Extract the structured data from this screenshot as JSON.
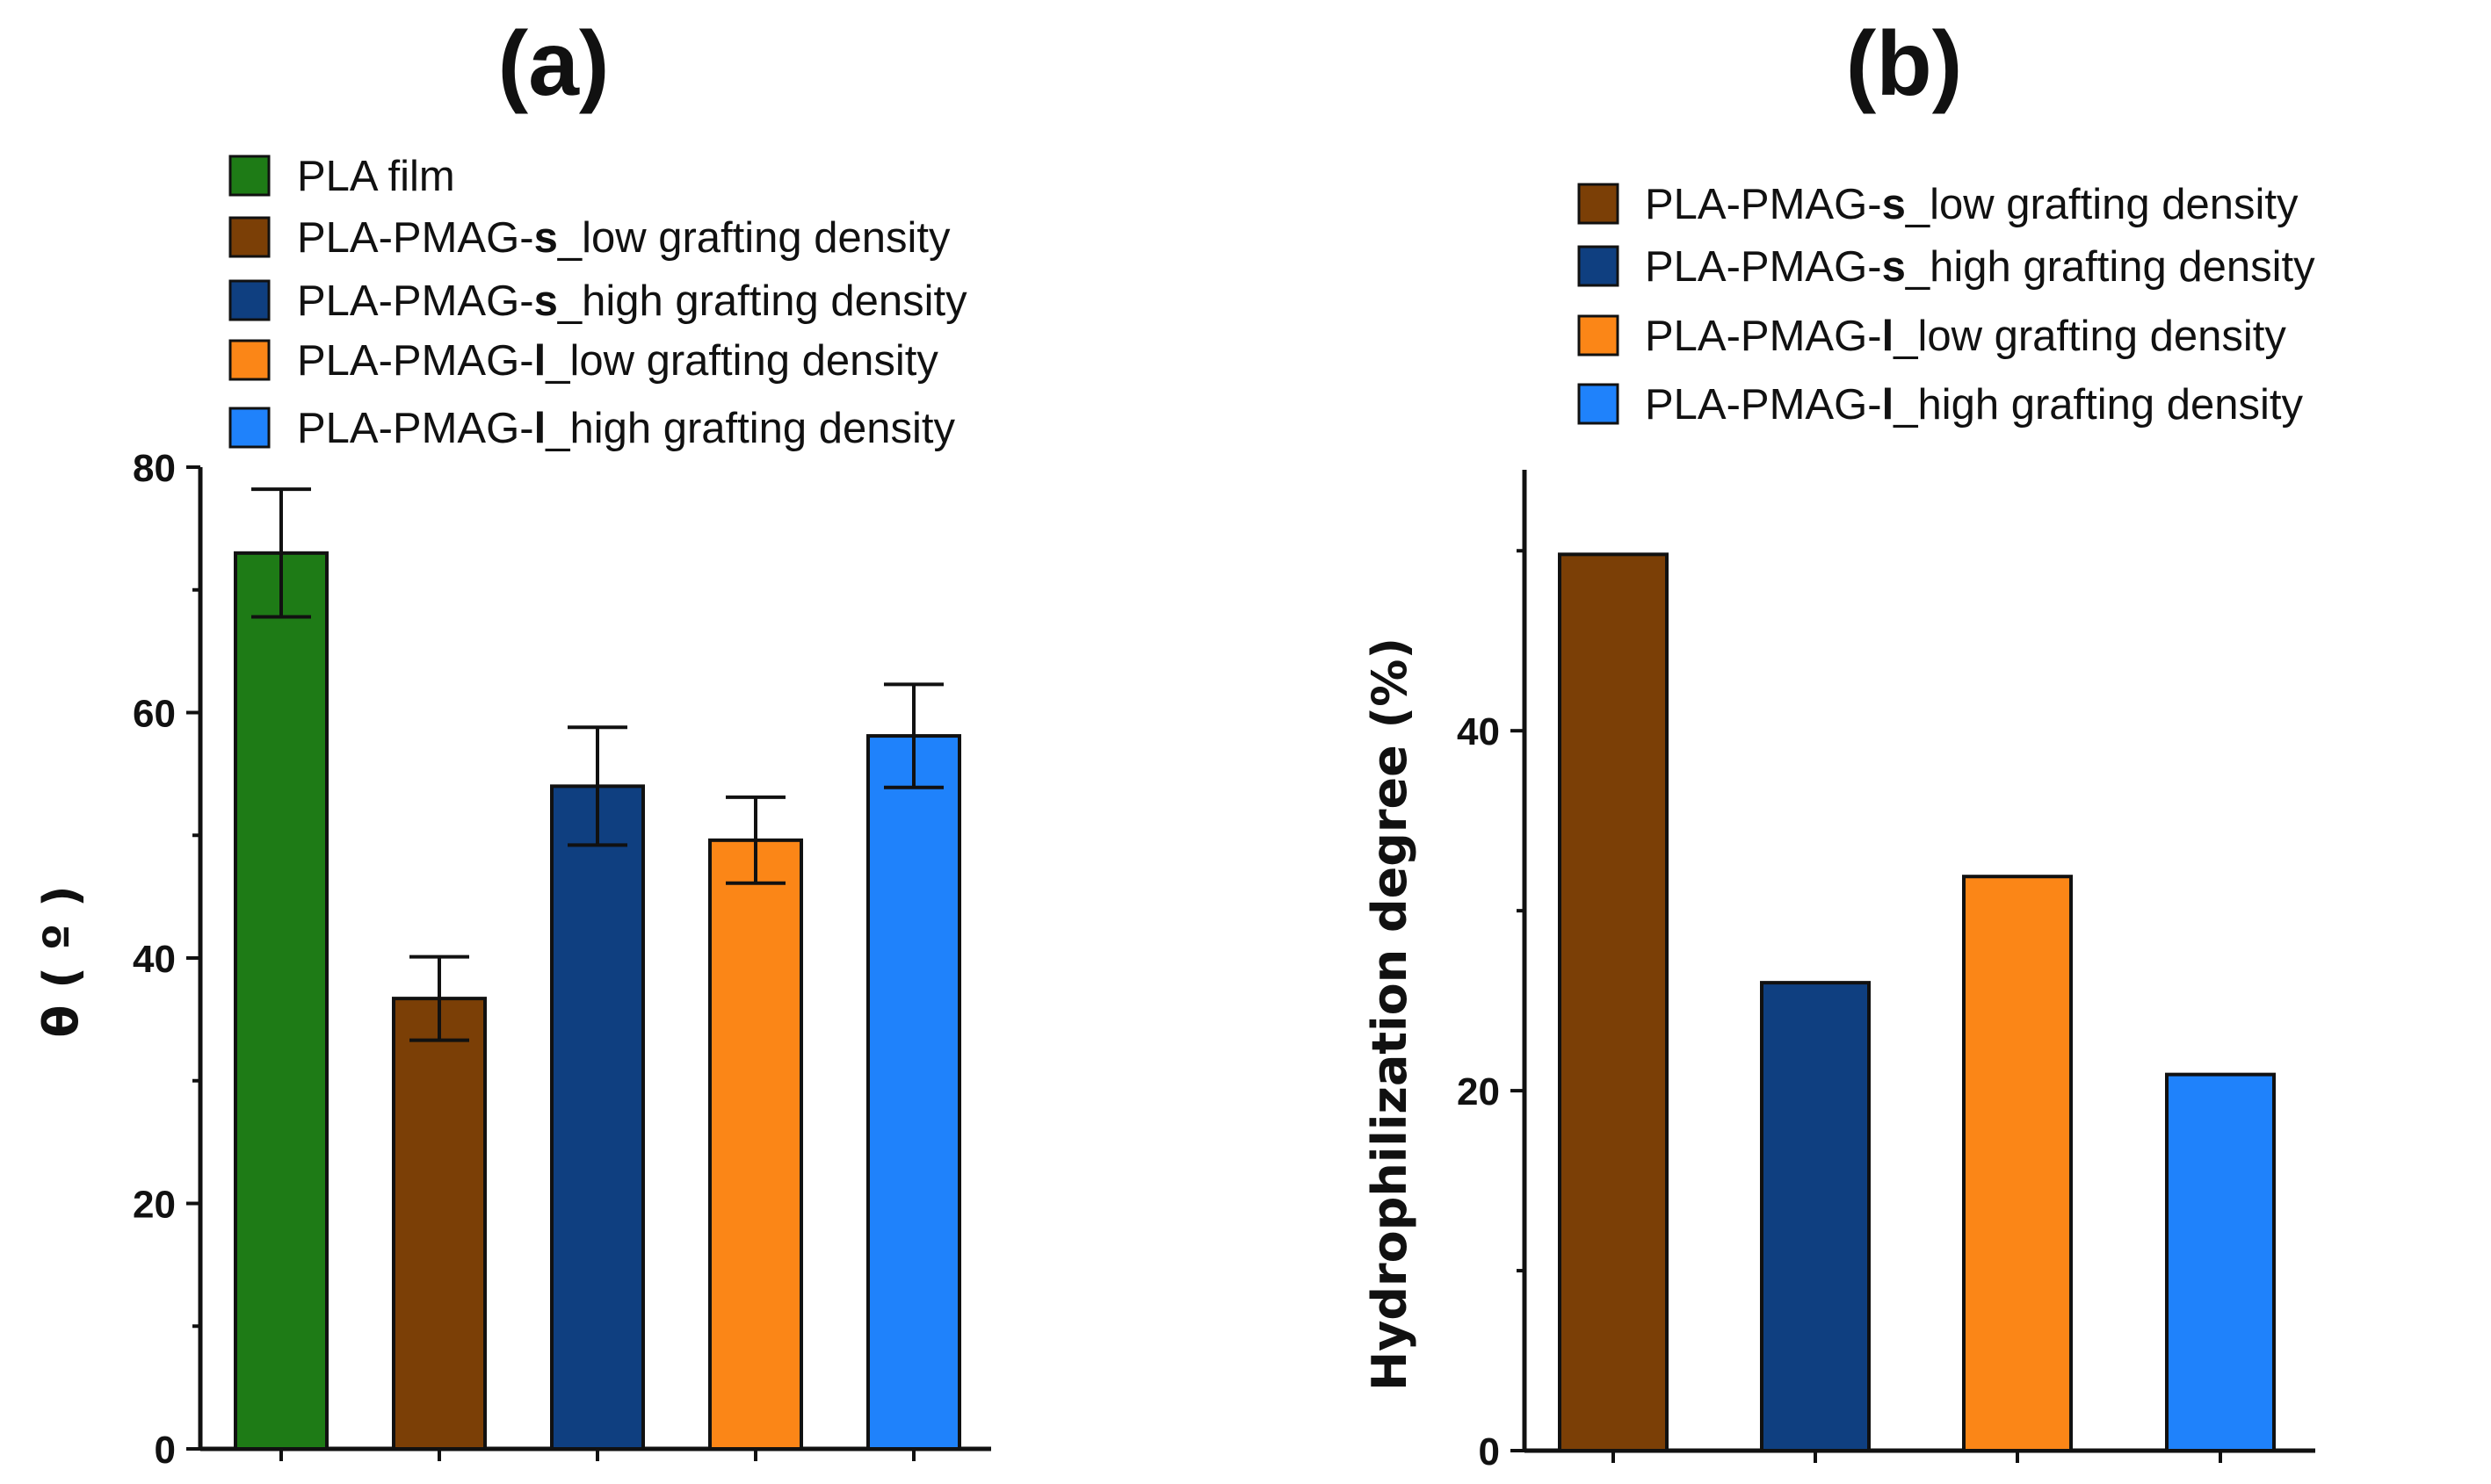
{
  "chart_data": [
    {
      "type": "bar",
      "panel_label": "(a)",
      "ylabel": "θ ( º )",
      "ylim": [
        0,
        80
      ],
      "yticks": [
        0,
        20,
        40,
        60,
        80
      ],
      "minor_ticks": true,
      "grid": false,
      "legend_position": "top",
      "legend": [
        {
          "parts": [
            {
              "text": "PLA film"
            }
          ],
          "color": "#1e7b16"
        },
        {
          "parts": [
            {
              "text": "PLA-PMAG-"
            },
            {
              "text": "s",
              "bold": true
            },
            {
              "text": "_low grafting density"
            }
          ],
          "color": "#7b3f06"
        },
        {
          "parts": [
            {
              "text": "PLA-PMAG-"
            },
            {
              "text": "s",
              "bold": true
            },
            {
              "text": "_high grafting density"
            }
          ],
          "color": "#0f3f80"
        },
        {
          "parts": [
            {
              "text": "PLA-PMAG-"
            },
            {
              "text": "l",
              "bold": true
            },
            {
              "text": "_low grafting density"
            }
          ],
          "color": "#fb8617"
        },
        {
          "parts": [
            {
              "text": "PLA-PMAG-"
            },
            {
              "text": "l",
              "bold": true
            },
            {
              "text": "_high grafting density"
            }
          ],
          "color": "#1f82fb"
        }
      ],
      "values": [
        73.0,
        36.7,
        54.0,
        49.6,
        58.1
      ],
      "errors": [
        5.2,
        3.4,
        4.8,
        3.5,
        4.2
      ],
      "colors": [
        "#1e7b16",
        "#7b3f06",
        "#0f3f80",
        "#fb8617",
        "#1f82fb"
      ]
    },
    {
      "type": "bar",
      "panel_label": "(b)",
      "ylabel": "Hydrophilization degree (%)",
      "ylim": [
        0,
        54.5
      ],
      "yticks": [
        0,
        20,
        40
      ],
      "minor_ticks": true,
      "grid": false,
      "legend_position": "top",
      "legend": [
        {
          "parts": [
            {
              "text": "PLA-PMAG-"
            },
            {
              "text": "s",
              "bold": true
            },
            {
              "text": "_low grafting density"
            }
          ],
          "color": "#7b3f06"
        },
        {
          "parts": [
            {
              "text": "PLA-PMAG-"
            },
            {
              "text": "s",
              "bold": true
            },
            {
              "text": "_high grafting density"
            }
          ],
          "color": "#0f3f80"
        },
        {
          "parts": [
            {
              "text": "PLA-PMAG-"
            },
            {
              "text": "l",
              "bold": true
            },
            {
              "text": "_low grafting density"
            }
          ],
          "color": "#fb8617"
        },
        {
          "parts": [
            {
              "text": "PLA-PMAG-"
            },
            {
              "text": "l",
              "bold": true
            },
            {
              "text": "_high grafting density"
            }
          ],
          "color": "#1f82fb"
        }
      ],
      "values": [
        49.8,
        26.0,
        31.9,
        20.9
      ],
      "colors": [
        "#7b3f06",
        "#0f3f80",
        "#fb8617",
        "#1f82fb"
      ]
    }
  ]
}
